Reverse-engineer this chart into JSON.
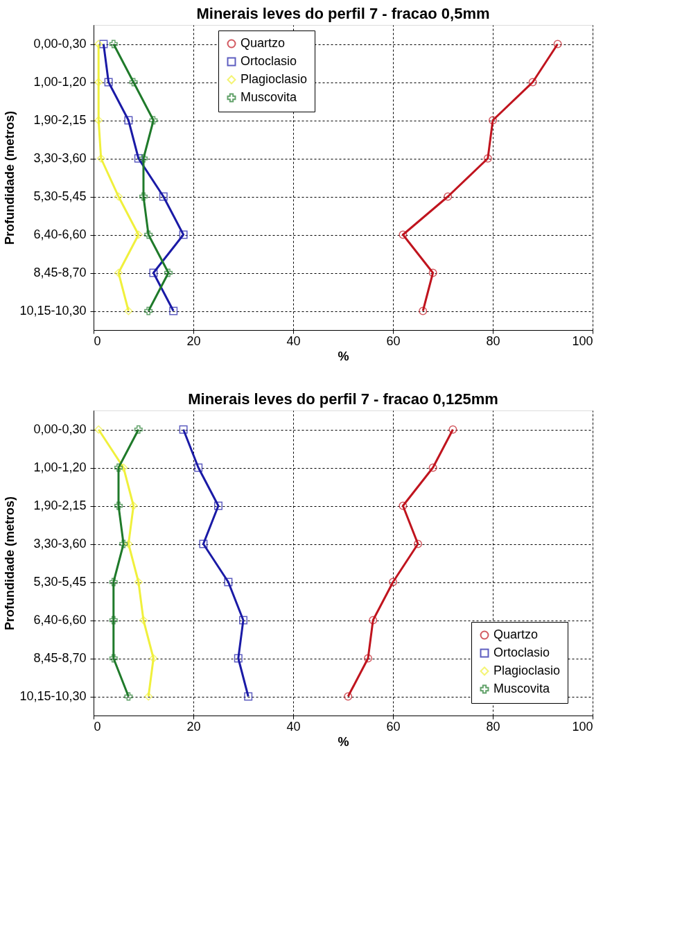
{
  "chart_data": [
    {
      "type": "line",
      "title": "Minerais leves do perfil 7 - fracao 0,5mm",
      "xlabel": "%",
      "ylabel": "Profundidade (metros)",
      "orientation": "horizontal",
      "categories": [
        "0,00-0,30",
        "1,00-1,20",
        "1,90-2,15",
        "3,30-3,60",
        "5,30-5,45",
        "6,40-6,60",
        "8,45-8,70",
        "10,15-10,30"
      ],
      "xlim": [
        0,
        100
      ],
      "xticks": [
        0,
        20,
        40,
        60,
        80,
        100
      ],
      "grid": true,
      "legend": "top",
      "line_style": "solid",
      "series": [
        {
          "name": "Quartzo",
          "color": "#c0141e",
          "marker": "circle",
          "values": [
            93,
            88,
            80,
            79,
            71,
            62,
            68,
            66
          ]
        },
        {
          "name": "Ortoclasio",
          "color": "#1a1aa6",
          "marker": "square",
          "values": [
            2,
            3,
            7,
            9,
            14,
            18,
            12,
            16
          ]
        },
        {
          "name": "Plagioclasio",
          "color": "#f0f03c",
          "marker": "diamond",
          "values": [
            1,
            1,
            1,
            1.5,
            5,
            9,
            5,
            7
          ]
        },
        {
          "name": "Muscovita",
          "color": "#1f7a2a",
          "marker": "cross",
          "values": [
            4,
            8,
            12,
            10,
            10,
            11,
            15,
            11
          ]
        }
      ]
    },
    {
      "type": "line",
      "title": "Minerais leves do perfil 7 - fracao 0,125mm",
      "xlabel": "%",
      "ylabel": "Profundidade (metros)",
      "orientation": "horizontal",
      "categories": [
        "0,00-0,30",
        "1,00-1,20",
        "1,90-2,15",
        "3,30-3,60",
        "5,30-5,45",
        "6,40-6,60",
        "8,45-8,70",
        "10,15-10,30"
      ],
      "xlim": [
        0,
        100
      ],
      "xticks": [
        0,
        20,
        40,
        60,
        80,
        100
      ],
      "grid": true,
      "legend": "bottom right",
      "line_style": "solid",
      "series": [
        {
          "name": "Quartzo",
          "color": "#c0141e",
          "marker": "circle",
          "values": [
            72,
            68,
            62,
            65,
            60,
            56,
            55,
            51
          ]
        },
        {
          "name": "Ortoclasio",
          "color": "#1a1aa6",
          "marker": "square",
          "values": [
            18,
            21,
            25,
            22,
            27,
            30,
            29,
            31
          ]
        },
        {
          "name": "Plagioclasio",
          "color": "#f0f03c",
          "marker": "diamond",
          "values": [
            1,
            6,
            8,
            7,
            9,
            10,
            12,
            11
          ]
        },
        {
          "name": "Muscovita",
          "color": "#1f7a2a",
          "marker": "cross",
          "values": [
            9,
            5,
            5,
            6,
            4,
            4,
            4,
            7
          ]
        }
      ]
    }
  ]
}
